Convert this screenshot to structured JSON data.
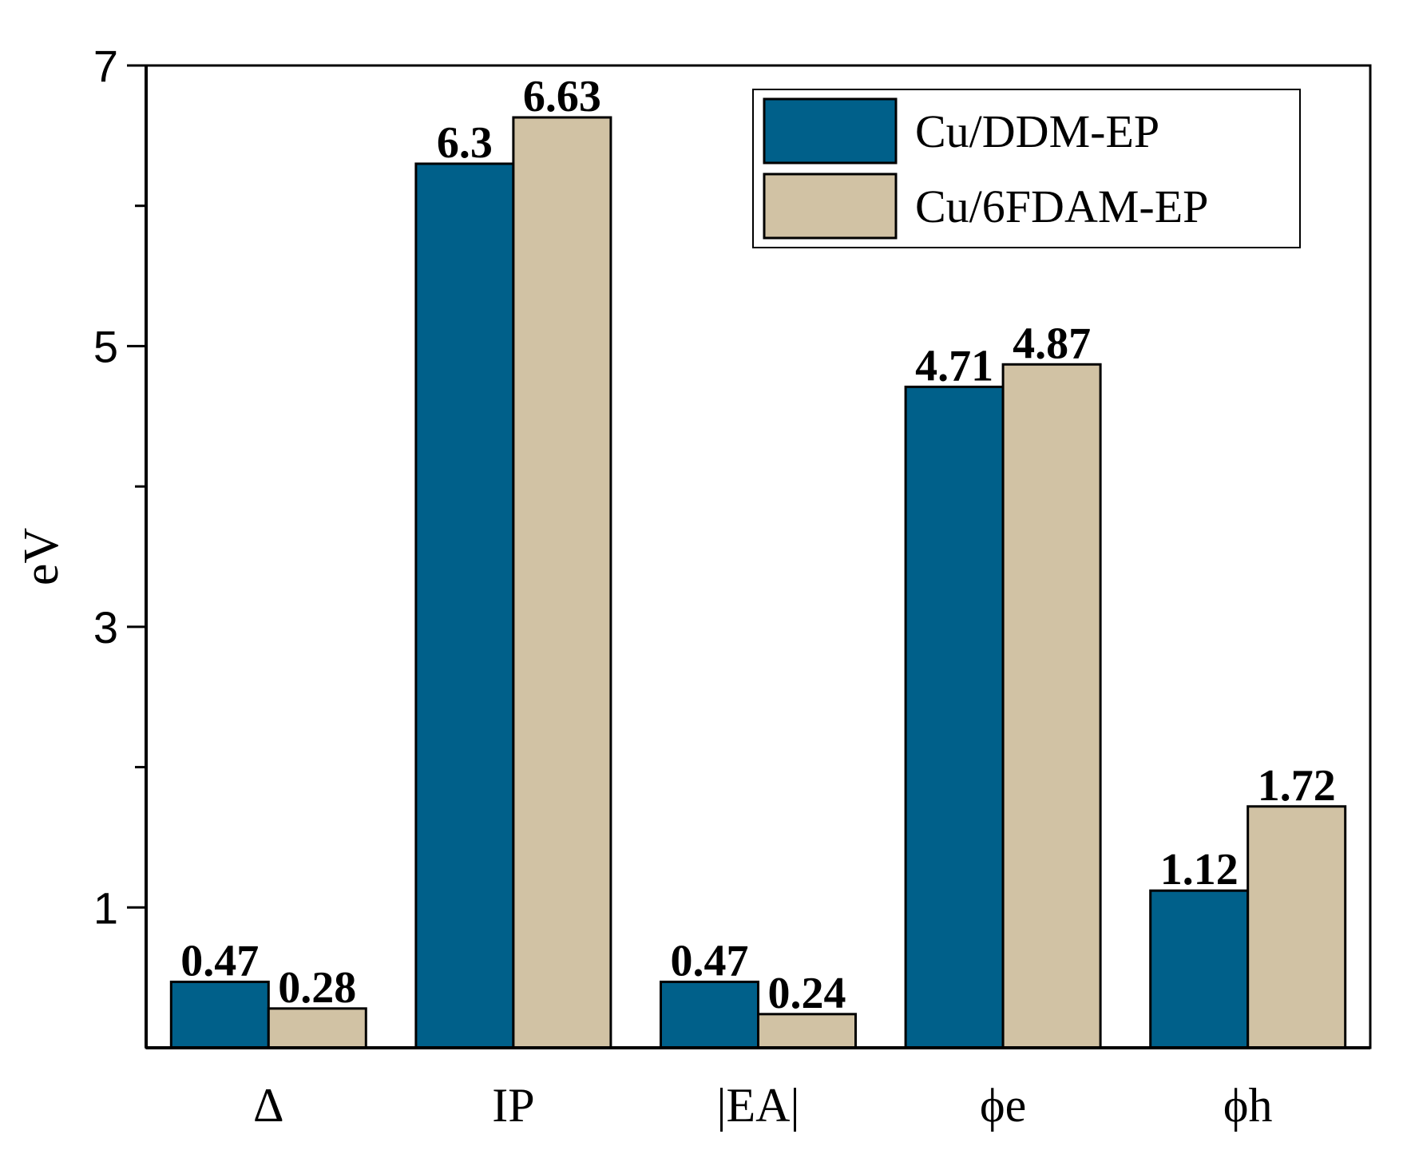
{
  "chart_data": {
    "type": "bar",
    "title": "",
    "xlabel": "",
    "ylabel": "eV",
    "ylim": [
      0,
      7
    ],
    "yticks": [
      1,
      3,
      5,
      7
    ],
    "ytick_labels": [
      "1",
      "3",
      "5",
      "7"
    ],
    "categories": [
      "Δ",
      "IP",
      "|EA|",
      "ϕe",
      "ϕh"
    ],
    "series": [
      {
        "name": "Cu/DDM-EP",
        "color": "#00608a",
        "values": [
          0.47,
          6.3,
          0.47,
          4.71,
          1.12
        ],
        "labels": [
          "0.47",
          "6.3",
          "0.47",
          "4.71",
          "1.12"
        ]
      },
      {
        "name": "Cu/6FDAM-EP",
        "color": "#d1c2a4",
        "values": [
          0.28,
          6.63,
          0.24,
          4.87,
          1.72
        ],
        "labels": [
          "0.28",
          "6.63",
          "0.24",
          "4.87",
          "1.72"
        ]
      }
    ],
    "legend_position": "top-right",
    "grid": false
  }
}
